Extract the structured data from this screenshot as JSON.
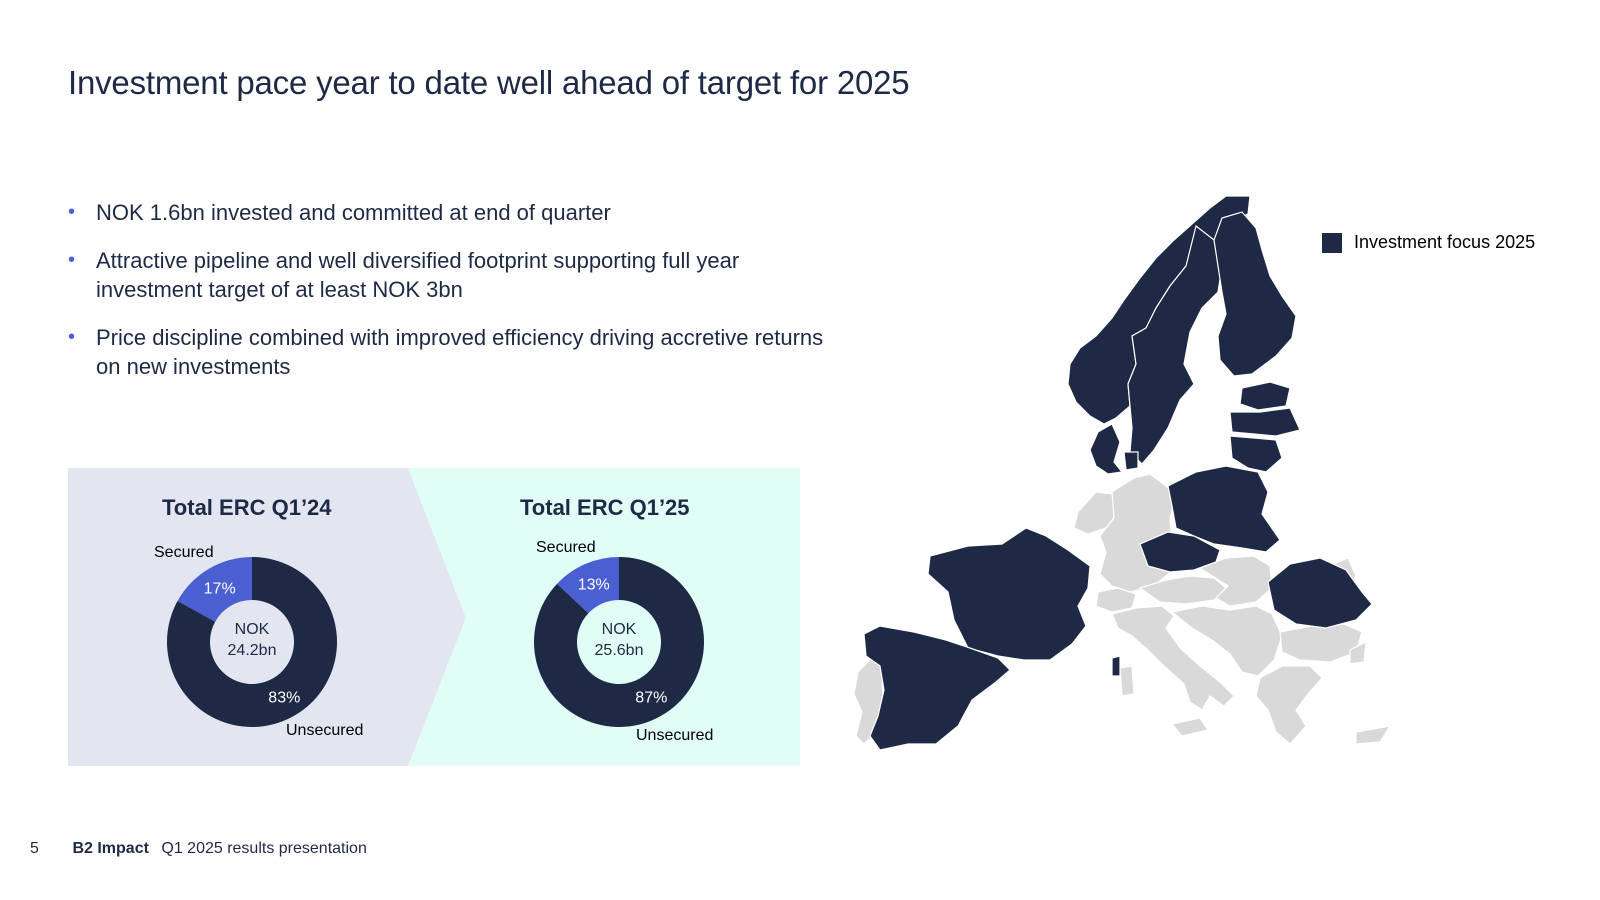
{
  "title": "Investment pace year to date well ahead of target for 2025",
  "bullets": [
    "NOK 1.6bn invested and committed at end of quarter",
    "Attractive pipeline and well diversified footprint supporting full year investment target of at least NOK 3bn",
    "Price discipline combined with improved efficiency driving accretive returns on new investments"
  ],
  "colors": {
    "navy": "#1e2a45",
    "blue": "#4a5fd1",
    "panel_left": "#e3e6f1",
    "panel_right": "#e0fdf6",
    "map_grey": "#d9d9d9"
  },
  "chart_data": [
    {
      "type": "pie",
      "title": "Total ERC Q1’24",
      "center_text": [
        "NOK",
        "24.2bn"
      ],
      "labels": [
        "Secured",
        "Unsecured"
      ],
      "values": [
        17,
        83
      ],
      "value_labels": [
        "17%",
        "83%"
      ],
      "colors": [
        "#4a5fd1",
        "#1e2a45"
      ]
    },
    {
      "type": "pie",
      "title": "Total ERC Q1’25",
      "center_text": [
        "NOK",
        "25.6bn"
      ],
      "labels": [
        "Secured",
        "Unsecured"
      ],
      "values": [
        13,
        87
      ],
      "value_labels": [
        "13%",
        "87%"
      ],
      "colors": [
        "#4a5fd1",
        "#1e2a45"
      ]
    }
  ],
  "map": {
    "legend_label": "Investment focus 2025",
    "focus_countries": [
      "Norway",
      "Sweden",
      "Finland",
      "Denmark",
      "Estonia",
      "Latvia",
      "Lithuania",
      "Poland",
      "Czech Republic",
      "France",
      "Spain",
      "Romania"
    ]
  },
  "footer": {
    "page": "5",
    "brand": "B2 Impact",
    "text": "Q1 2025 results presentation"
  }
}
